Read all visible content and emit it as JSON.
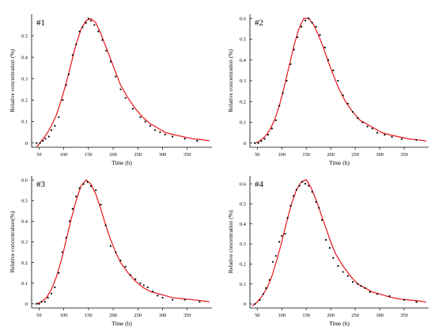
{
  "colors": {
    "curve": "#e8141b",
    "points": "#000000",
    "axes": "#000000"
  },
  "chart_data": [
    {
      "type": "scatter",
      "title": "#1",
      "xlabel": "Time (h)",
      "ylabel": "Relative concentration (%)",
      "xlim": [
        35,
        400
      ],
      "ylim": [
        -0.02,
        0.6
      ],
      "xticks": [
        50,
        100,
        150,
        200,
        250,
        300,
        350
      ],
      "yticks": [
        0,
        0.1,
        0.2,
        0.3,
        0.4,
        0.5
      ],
      "grid": false,
      "series": [
        {
          "kind": "points",
          "x": [
            45,
            52,
            58,
            63,
            70,
            75,
            82,
            90,
            98,
            105,
            110,
            118,
            125,
            132,
            138,
            145,
            150,
            155,
            162,
            170,
            178,
            186,
            195,
            205,
            215,
            225,
            240,
            255,
            265,
            275,
            285,
            295,
            305,
            320,
            345,
            370
          ],
          "y": [
            0.0,
            0.0,
            0.01,
            0.02,
            0.03,
            0.06,
            0.08,
            0.12,
            0.2,
            0.27,
            0.32,
            0.41,
            0.46,
            0.52,
            0.54,
            0.56,
            0.58,
            0.57,
            0.55,
            0.52,
            0.48,
            0.43,
            0.38,
            0.31,
            0.25,
            0.21,
            0.16,
            0.12,
            0.1,
            0.08,
            0.06,
            0.05,
            0.04,
            0.03,
            0.02,
            0.01
          ]
        },
        {
          "kind": "line",
          "x": [
            45,
            55,
            65,
            75,
            85,
            95,
            105,
            115,
            125,
            135,
            145,
            155,
            165,
            175,
            185,
            195,
            205,
            215,
            230,
            245,
            260,
            275,
            290,
            305,
            320,
            340,
            360,
            380,
            395
          ],
          "y": [
            -0.02,
            0.01,
            0.04,
            0.08,
            0.13,
            0.2,
            0.28,
            0.37,
            0.46,
            0.53,
            0.57,
            0.58,
            0.56,
            0.51,
            0.45,
            0.39,
            0.33,
            0.27,
            0.21,
            0.16,
            0.12,
            0.09,
            0.07,
            0.05,
            0.04,
            0.03,
            0.02,
            0.015,
            0.01
          ]
        }
      ]
    },
    {
      "type": "scatter",
      "title": "#2",
      "xlabel": "Time (h)",
      "ylabel": "Relative concentration (%)",
      "xlim": [
        35,
        400
      ],
      "ylim": [
        -0.02,
        0.62
      ],
      "xticks": [
        50,
        100,
        150,
        200,
        250,
        300,
        350
      ],
      "yticks": [
        0,
        0.1,
        0.2,
        0.3,
        0.4,
        0.5,
        0.6
      ],
      "grid": false,
      "series": [
        {
          "kind": "points",
          "x": [
            45,
            52,
            58,
            65,
            72,
            80,
            88,
            95,
            102,
            110,
            118,
            125,
            132,
            140,
            148,
            155,
            162,
            170,
            178,
            188,
            195,
            205,
            215,
            225,
            235,
            245,
            255,
            265,
            275,
            285,
            295,
            310,
            325,
            345,
            375
          ],
          "y": [
            0.0,
            0.0,
            0.01,
            0.02,
            0.04,
            0.07,
            0.11,
            0.18,
            0.24,
            0.3,
            0.38,
            0.45,
            0.51,
            0.56,
            0.59,
            0.6,
            0.58,
            0.56,
            0.52,
            0.46,
            0.4,
            0.35,
            0.3,
            0.23,
            0.19,
            0.15,
            0.12,
            0.1,
            0.08,
            0.07,
            0.05,
            0.04,
            0.03,
            0.02,
            0.015
          ]
        },
        {
          "kind": "line",
          "x": [
            45,
            55,
            65,
            75,
            85,
            95,
            105,
            115,
            125,
            135,
            145,
            155,
            165,
            175,
            185,
            195,
            205,
            215,
            230,
            245,
            260,
            275,
            290,
            305,
            320,
            340,
            360,
            380,
            395
          ],
          "y": [
            0.0,
            0.01,
            0.03,
            0.06,
            0.11,
            0.18,
            0.27,
            0.37,
            0.47,
            0.55,
            0.6,
            0.6,
            0.57,
            0.52,
            0.46,
            0.39,
            0.33,
            0.27,
            0.2,
            0.15,
            0.11,
            0.09,
            0.07,
            0.05,
            0.04,
            0.03,
            0.02,
            0.015,
            0.01
          ]
        }
      ]
    },
    {
      "type": "scatter",
      "title": "#3",
      "xlabel": "Time (h)",
      "ylabel": "Relative concentration(%)",
      "xlim": [
        35,
        400
      ],
      "ylim": [
        -0.02,
        0.62
      ],
      "xticks": [
        50,
        100,
        150,
        200,
        250,
        300,
        350
      ],
      "yticks": [
        0,
        0.1,
        0.2,
        0.3,
        0.4,
        0.5,
        0.6
      ],
      "grid": false,
      "series": [
        {
          "kind": "points",
          "x": [
            45,
            50,
            55,
            62,
            68,
            75,
            82,
            90,
            97,
            105,
            112,
            118,
            125,
            132,
            140,
            148,
            155,
            165,
            175,
            185,
            195,
            205,
            215,
            225,
            235,
            245,
            255,
            262,
            270,
            280,
            290,
            300,
            320,
            345,
            375
          ],
          "y": [
            0.0,
            0.0,
            0.01,
            0.01,
            0.03,
            0.05,
            0.08,
            0.15,
            0.25,
            0.32,
            0.4,
            0.46,
            0.52,
            0.56,
            0.58,
            0.59,
            0.57,
            0.55,
            0.48,
            0.38,
            0.28,
            0.25,
            0.21,
            0.18,
            0.14,
            0.12,
            0.1,
            0.09,
            0.08,
            0.06,
            0.04,
            0.03,
            0.02,
            0.02,
            0.01
          ]
        },
        {
          "kind": "line",
          "x": [
            45,
            55,
            65,
            75,
            85,
            95,
            105,
            115,
            125,
            135,
            145,
            155,
            165,
            175,
            185,
            195,
            205,
            215,
            230,
            245,
            260,
            275,
            290,
            305,
            320,
            340,
            360,
            380,
            395
          ],
          "y": [
            0.0,
            0.01,
            0.03,
            0.07,
            0.13,
            0.21,
            0.31,
            0.41,
            0.5,
            0.57,
            0.6,
            0.58,
            0.53,
            0.46,
            0.38,
            0.31,
            0.25,
            0.2,
            0.15,
            0.11,
            0.08,
            0.06,
            0.05,
            0.04,
            0.03,
            0.025,
            0.02,
            0.015,
            0.01
          ]
        }
      ]
    },
    {
      "type": "scatter",
      "title": "#4",
      "xlabel": "Time (h)",
      "ylabel": "Relative concentration (%)",
      "xlim": [
        35,
        400
      ],
      "ylim": [
        -0.02,
        0.64
      ],
      "xticks": [
        50,
        100,
        150,
        200,
        250,
        300,
        350
      ],
      "yticks": [
        0,
        0.1,
        0.2,
        0.3,
        0.4,
        0.5,
        0.6
      ],
      "grid": false,
      "series": [
        {
          "kind": "points",
          "x": [
            45,
            55,
            62,
            68,
            75,
            82,
            88,
            95,
            100,
            107,
            112,
            118,
            124,
            130,
            136,
            142,
            148,
            155,
            162,
            170,
            176,
            182,
            190,
            198,
            205,
            215,
            225,
            235,
            245,
            255,
            262,
            270,
            280,
            295,
            320,
            350,
            375
          ],
          "y": [
            0.0,
            0.02,
            0.05,
            0.08,
            0.12,
            0.21,
            0.24,
            0.31,
            0.34,
            0.35,
            0.43,
            0.49,
            0.54,
            0.57,
            0.59,
            0.61,
            0.6,
            0.59,
            0.56,
            0.51,
            0.48,
            0.42,
            0.32,
            0.28,
            0.23,
            0.19,
            0.16,
            0.14,
            0.11,
            0.1,
            0.09,
            0.08,
            0.06,
            0.05,
            0.04,
            0.02,
            0.01
          ]
        },
        {
          "kind": "line",
          "x": [
            40,
            50,
            60,
            70,
            80,
            90,
            100,
            110,
            120,
            130,
            140,
            150,
            160,
            170,
            180,
            190,
            200,
            210,
            225,
            240,
            255,
            270,
            285,
            300,
            320,
            340,
            360,
            380,
            395
          ],
          "y": [
            -0.01,
            0.01,
            0.04,
            0.08,
            0.14,
            0.22,
            0.31,
            0.41,
            0.5,
            0.57,
            0.61,
            0.62,
            0.58,
            0.52,
            0.45,
            0.38,
            0.31,
            0.25,
            0.19,
            0.14,
            0.1,
            0.08,
            0.06,
            0.05,
            0.035,
            0.025,
            0.02,
            0.015,
            0.01
          ]
        }
      ]
    }
  ]
}
